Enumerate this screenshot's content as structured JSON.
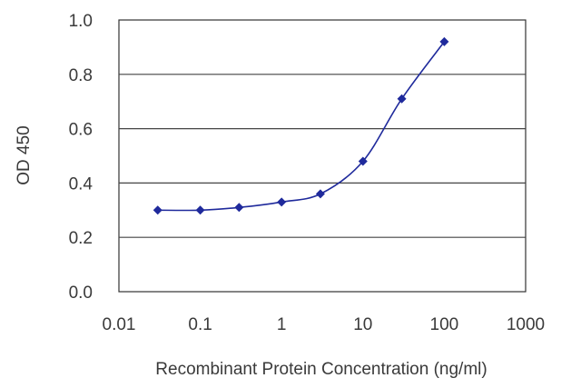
{
  "chart_data": {
    "type": "line",
    "title": "",
    "xlabel": "Recombinant Protein Concentration (ng/ml)",
    "ylabel": "OD 450",
    "x_scale": "log",
    "xlim": [
      0.01,
      1000
    ],
    "ylim": [
      0.0,
      1.0
    ],
    "x_ticks": [
      "0.01",
      "0.1",
      "1",
      "10",
      "100",
      "1000"
    ],
    "y_ticks": [
      "0.0",
      "0.2",
      "0.4",
      "0.6",
      "0.8",
      "1.0"
    ],
    "grid": "horizontal",
    "series": [
      {
        "color": "#1f2a9c",
        "points": [
          {
            "x": 0.03,
            "y": 0.3
          },
          {
            "x": 0.1,
            "y": 0.3
          },
          {
            "x": 0.3,
            "y": 0.31
          },
          {
            "x": 1,
            "y": 0.33
          },
          {
            "x": 3,
            "y": 0.36
          },
          {
            "x": 10,
            "y": 0.48
          },
          {
            "x": 30,
            "y": 0.71
          },
          {
            "x": 100,
            "y": 0.92
          }
        ]
      }
    ]
  }
}
